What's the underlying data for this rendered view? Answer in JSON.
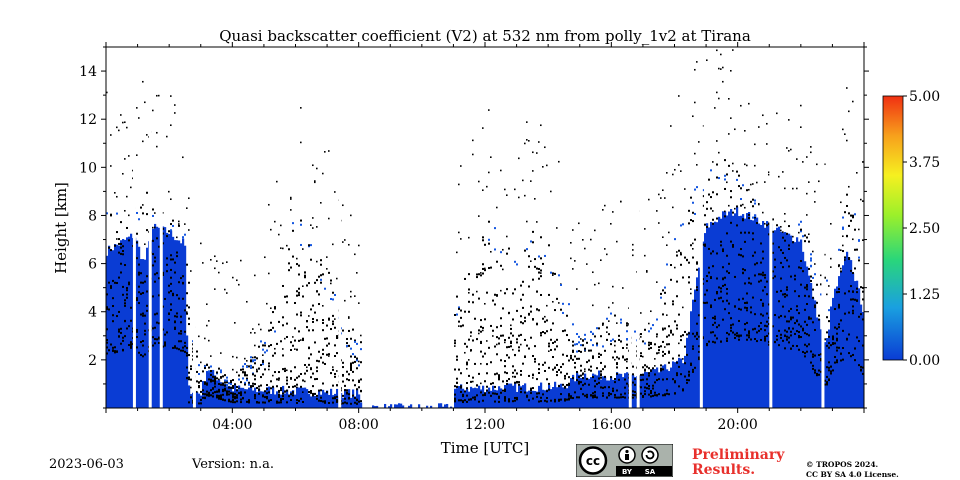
{
  "chart_data": {
    "type": "heatmap",
    "title": "Quasi backscatter coefficient (V2) at 532 nm from polly_1v2 at Tirana",
    "xlabel": "Time [UTC]",
    "ylabel": "Height [km]",
    "xlim_hours": [
      0,
      24
    ],
    "ylim_km": [
      0,
      15
    ],
    "x_ticks": [
      {
        "hour": 4,
        "label": "04:00"
      },
      {
        "hour": 8,
        "label": "08:00"
      },
      {
        "hour": 12,
        "label": "12:00"
      },
      {
        "hour": 16,
        "label": "16:00"
      },
      {
        "hour": 20,
        "label": "20:00"
      }
    ],
    "y_ticks": [
      {
        "value": 2,
        "label": "2"
      },
      {
        "value": 4,
        "label": "4"
      },
      {
        "value": 6,
        "label": "6"
      },
      {
        "value": 8,
        "label": "8"
      },
      {
        "value": 10,
        "label": "10"
      },
      {
        "value": 12,
        "label": "12"
      },
      {
        "value": 14,
        "label": "14"
      }
    ],
    "colorbar": {
      "min": 0.0,
      "max": 5.0,
      "ticks": [
        {
          "value": 0.0,
          "label": "0.00"
        },
        {
          "value": 1.25,
          "label": "1.25"
        },
        {
          "value": 2.5,
          "label": "2.50"
        },
        {
          "value": 3.75,
          "label": "3.75"
        },
        {
          "value": 5.0,
          "label": "5.00"
        }
      ],
      "colors": [
        "#0a3cd4",
        "#1aa0e0",
        "#2ad67a",
        "#9cf02a",
        "#f6f020",
        "#f7a01c",
        "#f03012"
      ]
    },
    "profile_top_km": [
      [
        0.0,
        8.6
      ],
      [
        0.5,
        8.0
      ],
      [
        1.0,
        8.2
      ],
      [
        1.3,
        9.2
      ],
      [
        1.6,
        8.0
      ],
      [
        2.0,
        8.5
      ],
      [
        2.5,
        7.5
      ],
      [
        2.8,
        3.0
      ],
      [
        3.0,
        2.0
      ],
      [
        3.5,
        1.8
      ],
      [
        4.0,
        1.2
      ],
      [
        5.0,
        3.0
      ],
      [
        5.5,
        5.0
      ],
      [
        6.0,
        8.5
      ],
      [
        6.5,
        7.0
      ],
      [
        7.0,
        6.0
      ],
      [
        7.5,
        4.0
      ],
      [
        8.0,
        3.0
      ],
      [
        11.0,
        4.5
      ],
      [
        11.5,
        6.0
      ],
      [
        12.0,
        8.0
      ],
      [
        12.5,
        7.5
      ],
      [
        13.0,
        6.0
      ],
      [
        13.5,
        7.5
      ],
      [
        14.0,
        7.0
      ],
      [
        14.5,
        5.0
      ],
      [
        15.0,
        3.0
      ],
      [
        15.5,
        3.5
      ],
      [
        16.0,
        4.0
      ],
      [
        17.0,
        3.5
      ],
      [
        17.5,
        4.5
      ],
      [
        18.0,
        8.0
      ],
      [
        18.5,
        9.0
      ],
      [
        19.0,
        10.0
      ],
      [
        19.5,
        10.5
      ],
      [
        20.0,
        10.0
      ],
      [
        20.5,
        9.0
      ],
      [
        21.0,
        8.0
      ],
      [
        21.5,
        7.5
      ],
      [
        22.0,
        8.0
      ],
      [
        22.5,
        6.0
      ],
      [
        23.0,
        5.0
      ],
      [
        23.5,
        10.0
      ],
      [
        24.0,
        6.0
      ]
    ],
    "blue_layer_km": [
      [
        0.0,
        6.5
      ],
      [
        0.9,
        7.2
      ],
      [
        1.2,
        6.0
      ],
      [
        1.5,
        7.5
      ],
      [
        2.0,
        7.3
      ],
      [
        2.5,
        6.8
      ],
      [
        2.6,
        0.8
      ],
      [
        3.0,
        0.6
      ],
      [
        3.2,
        1.6
      ],
      [
        3.6,
        1.2
      ],
      [
        4.0,
        0.8
      ],
      [
        6.0,
        0.7
      ],
      [
        8.0,
        0.6
      ],
      [
        8.1,
        0.0
      ],
      [
        11.0,
        0.0
      ],
      [
        11.05,
        0.8
      ],
      [
        14.5,
        0.9
      ],
      [
        15.0,
        1.4
      ],
      [
        16.5,
        1.3
      ],
      [
        17.5,
        1.5
      ],
      [
        18.3,
        2.0
      ],
      [
        18.6,
        4.5
      ],
      [
        19.0,
        7.5
      ],
      [
        19.5,
        8.0
      ],
      [
        20.0,
        8.2
      ],
      [
        21.0,
        7.6
      ],
      [
        21.5,
        7.2
      ],
      [
        22.0,
        7.0
      ],
      [
        22.5,
        4.0
      ],
      [
        22.8,
        2.5
      ],
      [
        23.0,
        4.5
      ],
      [
        23.5,
        6.5
      ],
      [
        24.0,
        4.0
      ]
    ],
    "gaps_hours": [
      0.9,
      1.4,
      1.75,
      2.8,
      7.4,
      16.6,
      16.85,
      18.85,
      21.05,
      22.7
    ]
  },
  "footer": {
    "date": "2023-06-03",
    "version": "Version: n.a.",
    "preliminary_line1": "Preliminary",
    "preliminary_line2": "Results.",
    "copyright_line1": "© TROPOS 2024.",
    "copyright_line2": "CC BY SA 4.0 License.",
    "cc_badge": {
      "cc": "cc",
      "by": "BY",
      "sa": "SA",
      "icon": "cc-by-sa-icon"
    }
  }
}
